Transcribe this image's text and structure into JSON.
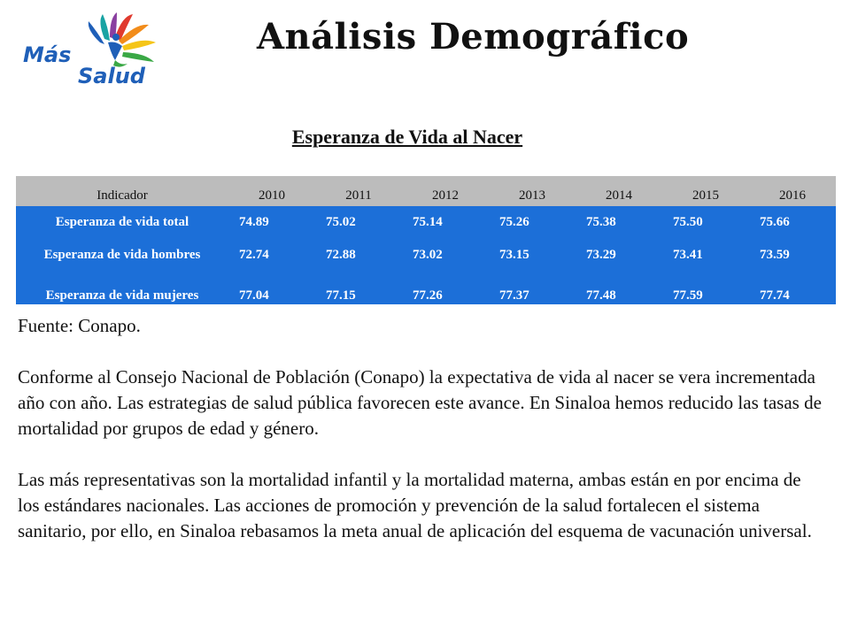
{
  "logo": {
    "text_line1": "Más",
    "text_line2": "Salud",
    "colors": {
      "blue": "#1f5fb8",
      "green": "#3aa845",
      "orange": "#f28c1a",
      "red": "#e03a2f",
      "yellow": "#f5c518",
      "purple": "#8a3fa0",
      "teal": "#18a3a3"
    }
  },
  "header": {
    "title": "Análisis Demográfico"
  },
  "table": {
    "title": "Esperanza de Vida al Nacer",
    "columns": [
      "Indicador",
      "2010",
      "2011",
      "2012",
      "2013",
      "2014",
      "2015",
      "2016"
    ],
    "rows": [
      {
        "label": "Esperanza de vida total",
        "values": [
          "74.89",
          "75.02",
          "75.14",
          "75.26",
          "75.38",
          "75.50",
          "75.66"
        ]
      },
      {
        "label": "Esperanza de vida hombres",
        "values": [
          "72.74",
          "72.88",
          "73.02",
          "73.15",
          "73.29",
          "73.41",
          "73.59"
        ]
      },
      {
        "label": "Esperanza de vida mujeres",
        "values": [
          "77.04",
          "77.15",
          "77.26",
          "77.37",
          "77.48",
          "77.59",
          "77.74"
        ]
      }
    ],
    "header_color": "#bcbcbc",
    "row_color": "#1c6fd8"
  },
  "text": {
    "source": "Fuente: Conapo.",
    "paragraph1": "Conforme al Consejo Nacional de Población (Conapo) la expectativa de vida al nacer se vera incrementada año con año. Las estrategias de salud pública favorecen este avance. En Sinaloa hemos reducido las tasas de mortalidad por grupos de edad y género.",
    "paragraph2": "Las más representativas son la mortalidad infantil y la mortalidad materna, ambas están en por encima de los estándares nacionales. Las acciones de promoción y prevención de la salud fortalecen el sistema sanitario, por ello, en Sinaloa rebasamos la meta anual de aplicación del esquema de vacunación universal."
  }
}
